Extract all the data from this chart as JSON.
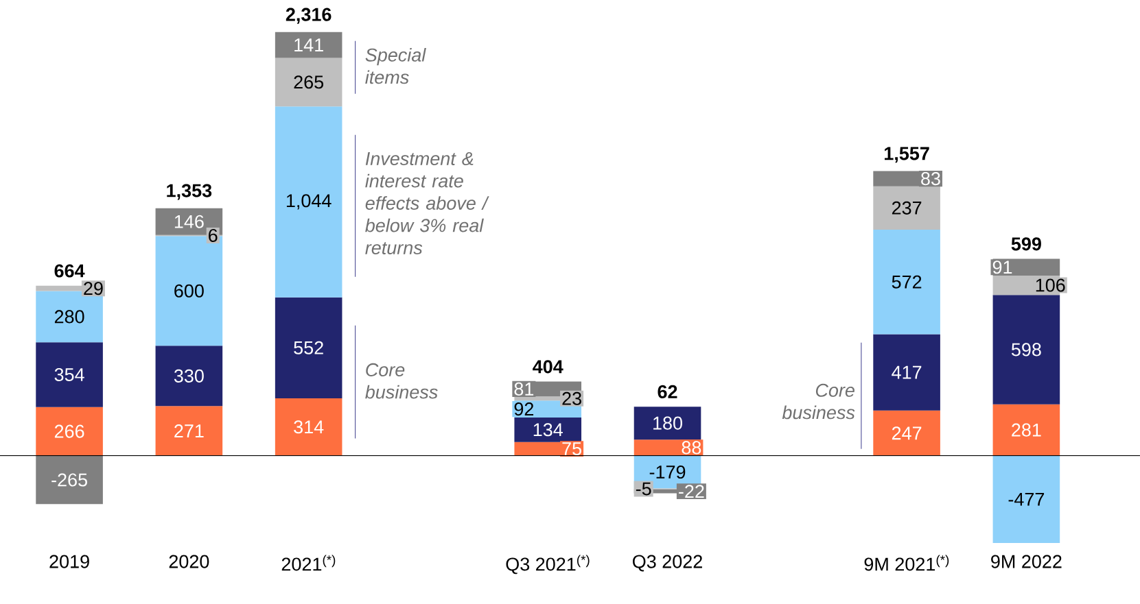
{
  "chart_data": {
    "type": "bar",
    "stacked": true,
    "tick_labels": "x",
    "categories": [
      "2019",
      "2020",
      "2021$^{(*)}$",
      null,
      "Q3 2021$^{(*)}$",
      "Q3 2022",
      null,
      "9M 2021$^{(*)}$",
      "9M 2022"
    ],
    "series": [
      {
        "color": "#fe6f3f",
        "values": [
          266,
          271,
          314,
          null,
          75,
          88,
          null,
          247,
          281
        ],
        "value_labels": [
          "266",
          "271",
          "314",
          null,
          "75",
          "88",
          null,
          "247",
          "281"
        ]
      },
      {
        "color": "#22256e",
        "values": [
          354,
          330,
          552,
          null,
          134,
          180,
          null,
          417,
          598
        ],
        "value_labels": [
          "354",
          "330",
          "552",
          null,
          "134",
          "180",
          null,
          "417",
          "598"
        ]
      },
      {
        "color": "#8ed1fa",
        "values": [
          280,
          600,
          1044,
          null,
          92,
          -179,
          null,
          572,
          -477
        ],
        "value_labels": [
          "280",
          "600",
          "1,044",
          null,
          "92",
          "-179",
          null,
          "572",
          "-477"
        ]
      },
      {
        "color": "#bfbfbf",
        "values": [
          29,
          6,
          265,
          null,
          23,
          -5,
          null,
          237,
          106
        ],
        "value_labels": [
          "29",
          "6",
          "265",
          null,
          "23",
          "-5",
          null,
          "237",
          "106"
        ]
      },
      {
        "color": "#808080",
        "values": [
          -265,
          146,
          141,
          null,
          81,
          -22,
          null,
          83,
          91
        ],
        "value_labels": [
          "-265",
          "146",
          "141",
          null,
          "81",
          "-22",
          null,
          "83",
          "91"
        ]
      }
    ],
    "totals": [
      "664",
      "1,353",
      "2,316",
      null,
      "404",
      "62",
      null,
      "1,557",
      "599"
    ],
    "annotations": [
      "Special items",
      "Investment & interest rate effects above / below 3% real returns",
      "Core business",
      "Core business"
    ]
  }
}
